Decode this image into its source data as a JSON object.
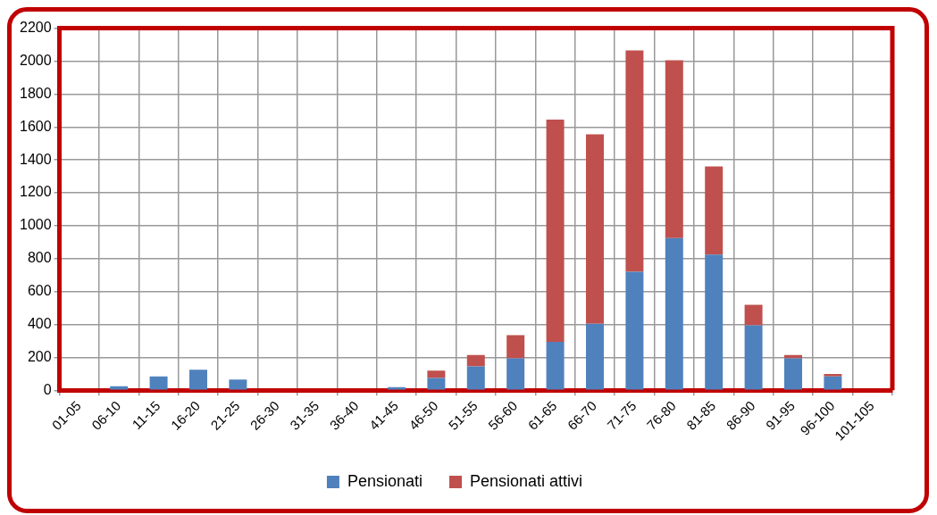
{
  "chart_data": {
    "type": "bar",
    "stacked": true,
    "categories": [
      "01-05",
      "06-10",
      "11-15",
      "16-20",
      "21-25",
      "26-30",
      "31-35",
      "36-40",
      "41-45",
      "46-50",
      "51-55",
      "56-60",
      "61-65",
      "66-70",
      "71-75",
      "76-80",
      "81-85",
      "86-90",
      "91-95",
      "96-100",
      "101-105"
    ],
    "series": [
      {
        "name": "Pensionati",
        "color": "#4f81bd",
        "values": [
          0,
          25,
          85,
          125,
          65,
          0,
          0,
          0,
          20,
          75,
          145,
          195,
          295,
          405,
          720,
          925,
          825,
          395,
          195,
          85,
          0
        ]
      },
      {
        "name": "Pensionati attivi",
        "color": "#c0504d",
        "values": [
          0,
          0,
          0,
          0,
          0,
          0,
          0,
          5,
          0,
          45,
          70,
          140,
          1350,
          1150,
          1345,
          1080,
          535,
          125,
          20,
          15,
          0
        ]
      }
    ],
    "ylim": [
      0,
      2200
    ],
    "yticks": [
      0,
      200,
      400,
      600,
      800,
      1000,
      1200,
      1400,
      1600,
      1800,
      2000,
      2200
    ],
    "grid": true,
    "legend": "bottom"
  }
}
